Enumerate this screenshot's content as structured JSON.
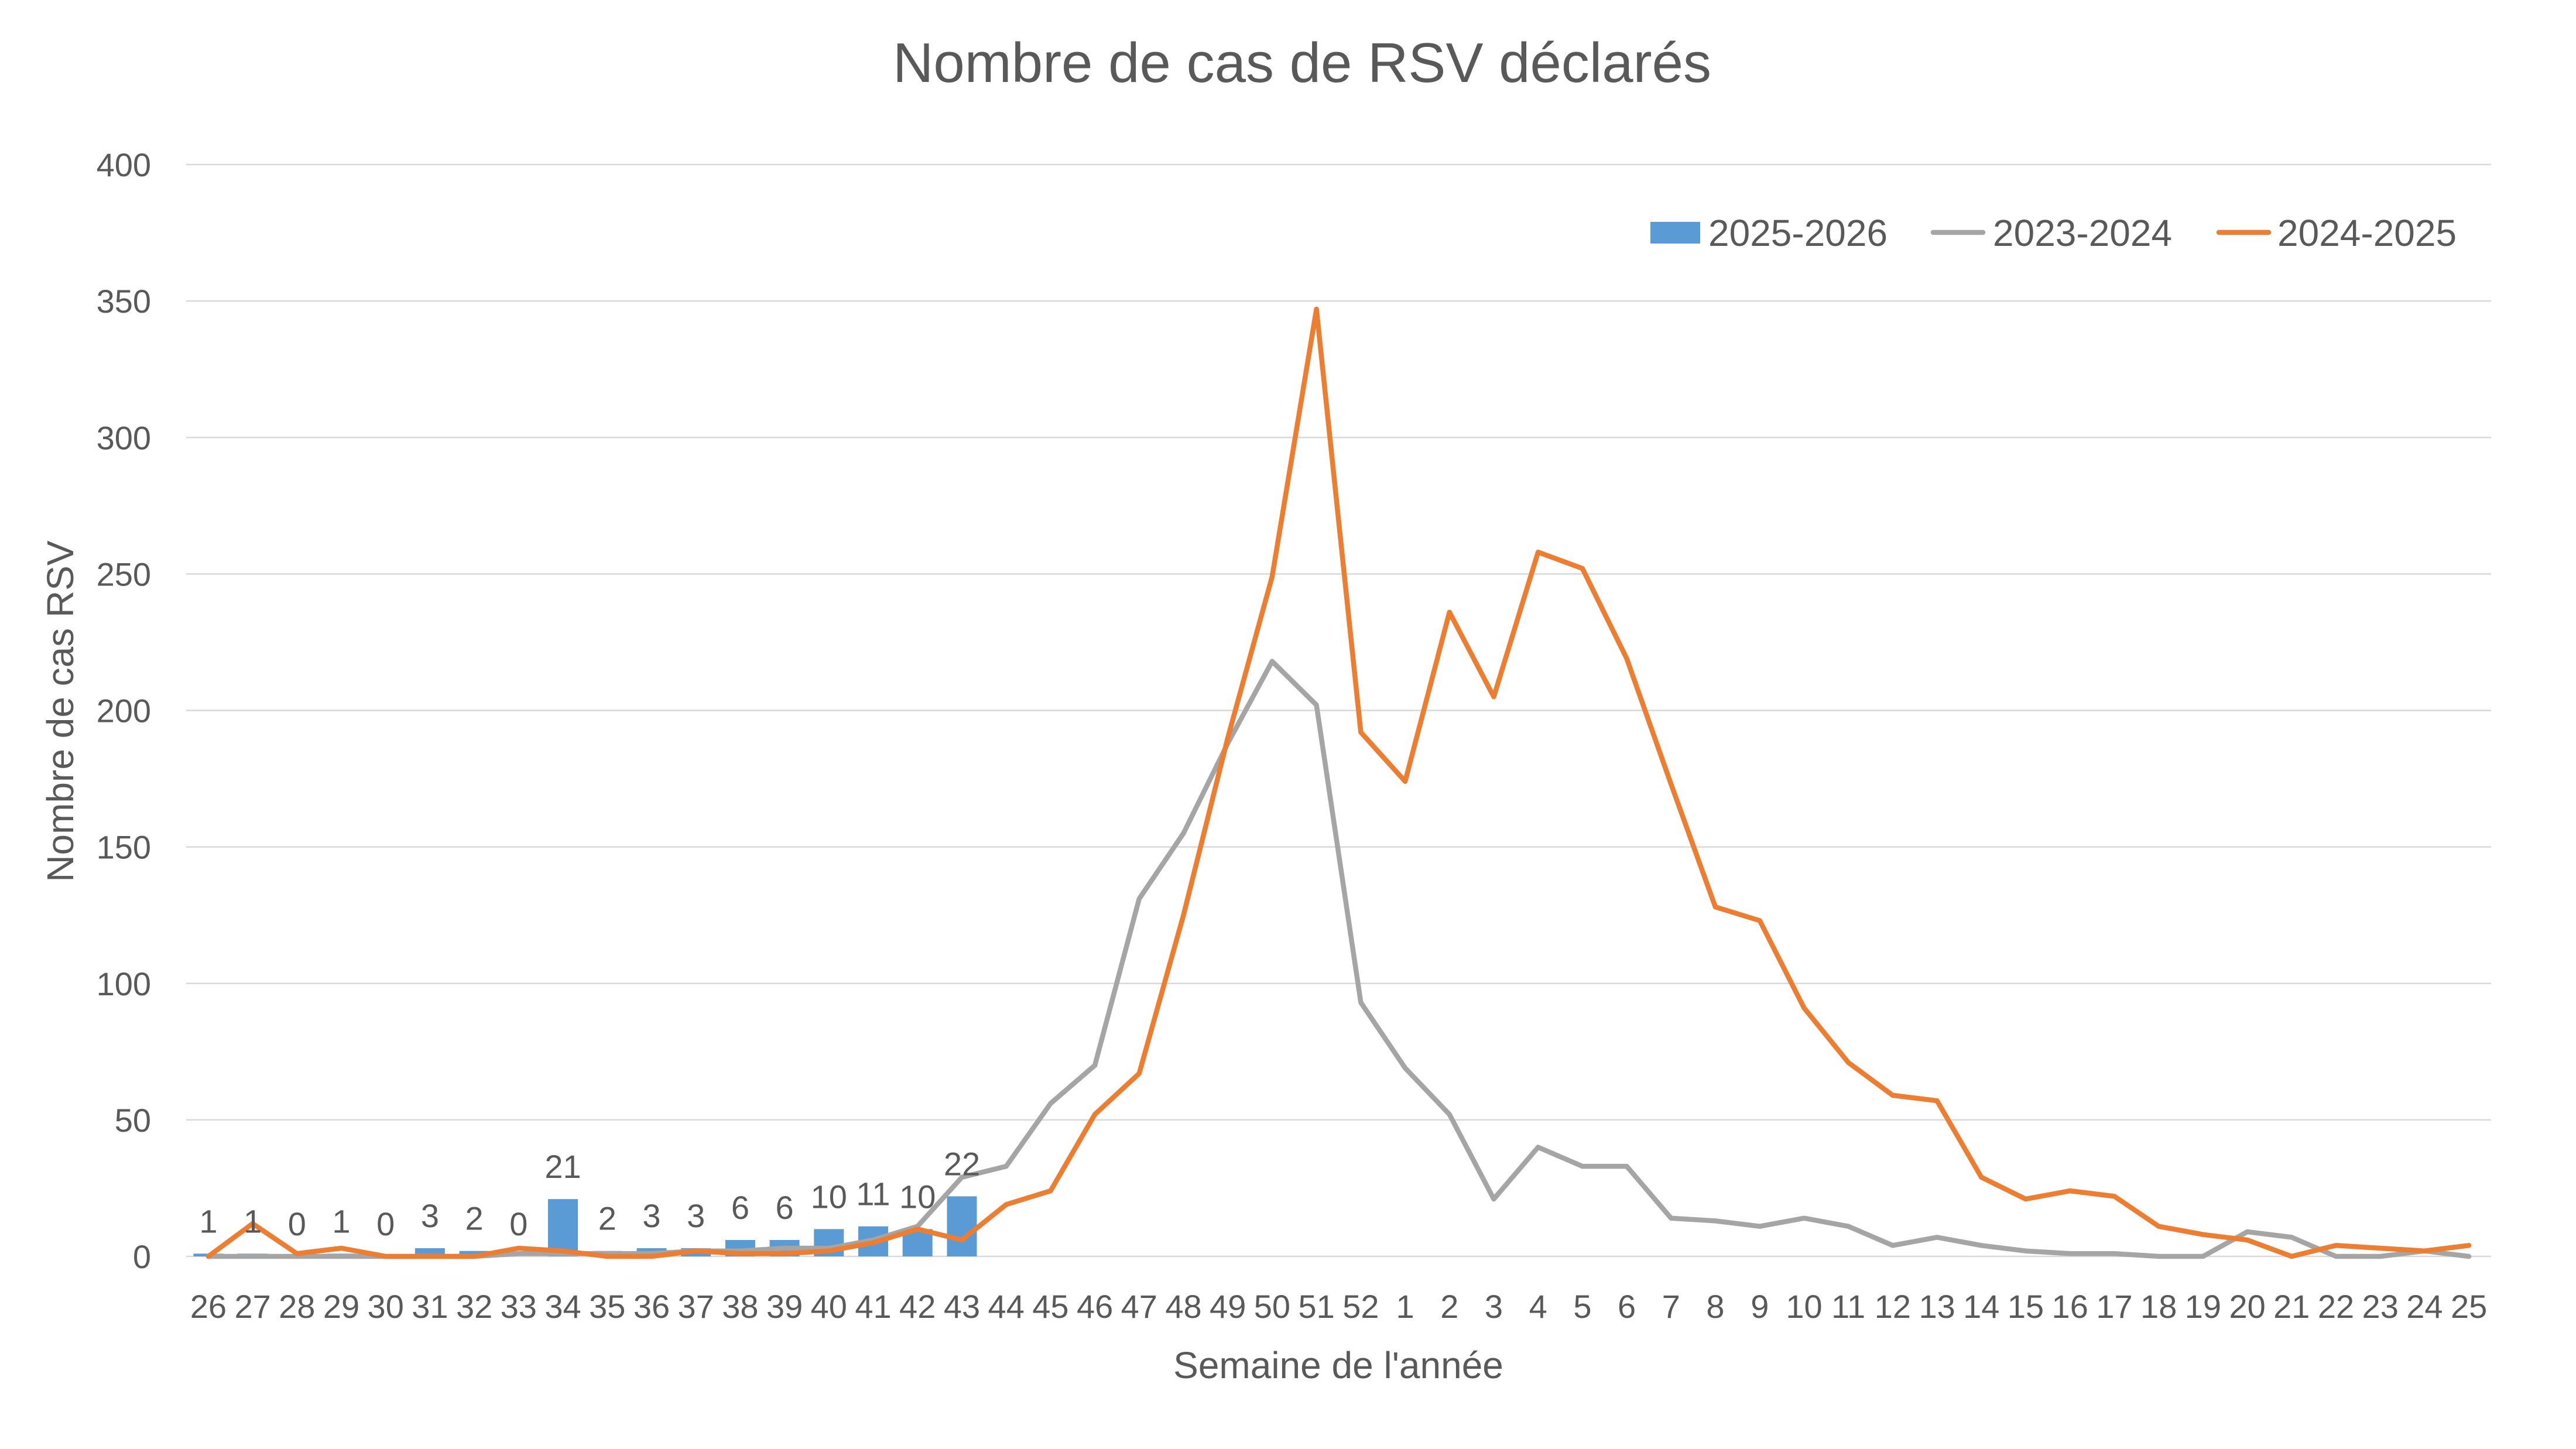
{
  "chart_data": {
    "type": "line",
    "title": "Nombre de cas de RSV déclarés",
    "xlabel": "Semaine de l'année",
    "ylabel": "Nombre de cas RSV",
    "ylim": [
      0,
      400
    ],
    "yticks": [
      0,
      50,
      100,
      150,
      200,
      250,
      300,
      350,
      400
    ],
    "grid": {
      "horizontal": true,
      "vertical": false
    },
    "legend": "top-right",
    "categories": [
      "26",
      "27",
      "28",
      "29",
      "30",
      "31",
      "32",
      "33",
      "34",
      "35",
      "36",
      "37",
      "38",
      "39",
      "40",
      "41",
      "42",
      "43",
      "44",
      "45",
      "46",
      "47",
      "48",
      "49",
      "50",
      "51",
      "52",
      "1",
      "2",
      "3",
      "4",
      "5",
      "6",
      "7",
      "8",
      "9",
      "10",
      "11",
      "12",
      "13",
      "14",
      "15",
      "16",
      "17",
      "18",
      "19",
      "20",
      "21",
      "22",
      "23",
      "24",
      "25"
    ],
    "series": [
      {
        "name": "2025-2026",
        "type": "bar",
        "color": "#5B9BD5",
        "data_labels": true,
        "values": [
          1,
          1,
          0,
          1,
          0,
          3,
          2,
          0,
          21,
          2,
          3,
          3,
          6,
          6,
          10,
          11,
          10,
          22,
          null,
          null,
          null,
          null,
          null,
          null,
          null,
          null,
          null,
          null,
          null,
          null,
          null,
          null,
          null,
          null,
          null,
          null,
          null,
          null,
          null,
          null,
          null,
          null,
          null,
          null,
          null,
          null,
          null,
          null,
          null,
          null,
          null,
          null
        ]
      },
      {
        "name": "2023-2024",
        "type": "line",
        "color": "#A5A5A5",
        "values": [
          0,
          0,
          0,
          0,
          0,
          0,
          0,
          1,
          1,
          1,
          1,
          2,
          2,
          3,
          3,
          6,
          11,
          29,
          33,
          56,
          70,
          131,
          155,
          188,
          218,
          202,
          93,
          69,
          52,
          21,
          40,
          33,
          33,
          14,
          13,
          11,
          14,
          11,
          4,
          7,
          4,
          2,
          1,
          1,
          0,
          0,
          9,
          7,
          0,
          0,
          2,
          0
        ]
      },
      {
        "name": "2024-2025",
        "type": "line",
        "color": "#ED7D31",
        "values": [
          0,
          12,
          1,
          3,
          0,
          0,
          0,
          3,
          2,
          0,
          0,
          2,
          1,
          1,
          2,
          5,
          10,
          6,
          19,
          24,
          52,
          67,
          125,
          190,
          249,
          347,
          192,
          174,
          236,
          205,
          258,
          252,
          219,
          173,
          128,
          123,
          91,
          71,
          59,
          57,
          29,
          21,
          24,
          22,
          11,
          8,
          6,
          0,
          4,
          3,
          2,
          4
        ]
      }
    ]
  },
  "colors": {
    "text": "#595959",
    "grid": "#D9D9D9",
    "background": "#FFFFFF"
  }
}
